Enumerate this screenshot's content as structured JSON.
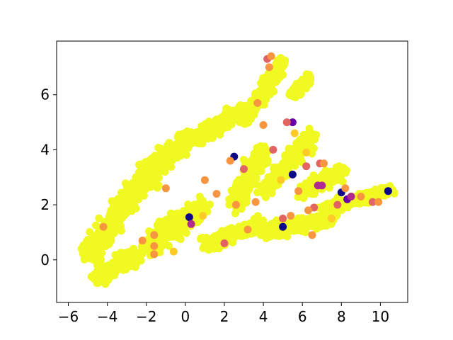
{
  "chart_data": {
    "type": "scatter",
    "title": "",
    "xlabel": "",
    "ylabel": "",
    "xlim": [
      -6.6,
      11.4
    ],
    "ylim": [
      -1.55,
      7.95
    ],
    "xticks": [
      "−6",
      "−4",
      "−2",
      "0",
      "2",
      "4",
      "6",
      "8",
      "10"
    ],
    "xtick_values": [
      -6,
      -4,
      -2,
      0,
      2,
      4,
      6,
      8,
      10
    ],
    "yticks": [
      "0",
      "2",
      "4",
      "6"
    ],
    "ytick_values": [
      0,
      2,
      4,
      6
    ],
    "grid": false,
    "legend": "none",
    "colormap": "plasma",
    "colors": {
      "dominant": "#f0f921",
      "orange": "#f89540",
      "gold": "#fdca26",
      "salmon": "#e16462",
      "magenta": "#b12a90",
      "purple": "#6a00a8",
      "navy": "#0d0887"
    },
    "dense_regions": [
      {
        "from": [
          -5.0,
          0.2
        ],
        "to": [
          -3.5,
          1.5
        ],
        "spread": 0.45
      },
      {
        "from": [
          -4.5,
          -0.6
        ],
        "to": [
          -2.5,
          0.2
        ],
        "spread": 0.35
      },
      {
        "from": [
          -3.5,
          1.8
        ],
        "to": [
          -1.5,
          3.3
        ],
        "spread": 0.45
      },
      {
        "from": [
          -2.0,
          3.2
        ],
        "to": [
          0.5,
          4.5
        ],
        "spread": 0.4
      },
      {
        "from": [
          0.5,
          4.4
        ],
        "to": [
          3.0,
          5.4
        ],
        "spread": 0.35
      },
      {
        "from": [
          -2.0,
          0.5
        ],
        "to": [
          1.0,
          2.0
        ],
        "spread": 0.45
      },
      {
        "from": [
          1.0,
          0.6
        ],
        "to": [
          4.0,
          1.3
        ],
        "spread": 0.3
      },
      {
        "from": [
          4.0,
          1.0
        ],
        "to": [
          7.5,
          1.5
        ],
        "spread": 0.3
      },
      {
        "from": [
          7.0,
          1.8
        ],
        "to": [
          10.6,
          2.55
        ],
        "spread": 0.22
      },
      {
        "from": [
          2.5,
          2.0
        ],
        "to": [
          4.0,
          4.0
        ],
        "spread": 0.4
      },
      {
        "from": [
          4.0,
          2.5
        ],
        "to": [
          6.5,
          4.5
        ],
        "spread": 0.35
      },
      {
        "from": [
          3.0,
          5.0
        ],
        "to": [
          5.0,
          7.2
        ],
        "spread": 0.3
      },
      {
        "from": [
          5.5,
          6.0
        ],
        "to": [
          6.3,
          6.6
        ],
        "spread": 0.2
      },
      {
        "from": [
          6.0,
          2.5
        ],
        "to": [
          8.0,
          3.2
        ],
        "spread": 0.3
      }
    ],
    "highlight_points": [
      {
        "x": 2.5,
        "y": 3.75,
        "color": "navy"
      },
      {
        "x": 0.2,
        "y": 1.55,
        "color": "navy"
      },
      {
        "x": 8.0,
        "y": 2.45,
        "color": "navy"
      },
      {
        "x": 10.4,
        "y": 2.5,
        "color": "navy"
      },
      {
        "x": 8.3,
        "y": 2.2,
        "color": "purple"
      },
      {
        "x": 5.5,
        "y": 3.1,
        "color": "navy"
      },
      {
        "x": 5.0,
        "y": 1.2,
        "color": "navy"
      },
      {
        "x": 5.5,
        "y": 5.0,
        "color": "purple"
      },
      {
        "x": 2.3,
        "y": 3.6,
        "color": "orange"
      },
      {
        "x": 0.3,
        "y": 1.3,
        "color": "magenta"
      },
      {
        "x": 6.8,
        "y": 2.7,
        "color": "magenta"
      },
      {
        "x": 7.0,
        "y": 2.7,
        "color": "magenta"
      },
      {
        "x": 8.5,
        "y": 2.3,
        "color": "magenta"
      },
      {
        "x": 5.2,
        "y": 5.0,
        "color": "salmon"
      },
      {
        "x": 5.0,
        "y": 1.5,
        "color": "salmon"
      },
      {
        "x": 3.0,
        "y": 3.3,
        "color": "salmon"
      },
      {
        "x": 2.0,
        "y": 0.6,
        "color": "salmon"
      },
      {
        "x": 6.9,
        "y": 3.5,
        "color": "salmon"
      },
      {
        "x": 7.8,
        "y": 2.0,
        "color": "salmon"
      },
      {
        "x": 9.6,
        "y": 2.1,
        "color": "salmon"
      },
      {
        "x": 4.5,
        "y": 4.0,
        "color": "salmon"
      },
      {
        "x": 4.2,
        "y": 7.3,
        "color": "salmon"
      },
      {
        "x": 4.4,
        "y": 7.4,
        "color": "orange"
      },
      {
        "x": 6.6,
        "y": 1.9,
        "color": "salmon"
      },
      {
        "x": 6.2,
        "y": 3.4,
        "color": "salmon"
      },
      {
        "x": 2.6,
        "y": 2.0,
        "color": "orange"
      },
      {
        "x": 1.0,
        "y": 2.9,
        "color": "orange"
      },
      {
        "x": -1.0,
        "y": 2.6,
        "color": "orange"
      },
      {
        "x": -2.2,
        "y": 0.7,
        "color": "orange"
      },
      {
        "x": -1.6,
        "y": 0.2,
        "color": "orange"
      },
      {
        "x": -1.6,
        "y": 0.5,
        "color": "orange"
      },
      {
        "x": -1.6,
        "y": 0.9,
        "color": "orange"
      },
      {
        "x": -4.2,
        "y": 1.2,
        "color": "orange"
      },
      {
        "x": 3.6,
        "y": 2.1,
        "color": "orange"
      },
      {
        "x": 3.7,
        "y": 5.7,
        "color": "orange"
      },
      {
        "x": 4.0,
        "y": 4.9,
        "color": "orange"
      },
      {
        "x": 4.3,
        "y": 7.0,
        "color": "orange"
      },
      {
        "x": 5.4,
        "y": 1.6,
        "color": "orange"
      },
      {
        "x": 5.8,
        "y": 2.5,
        "color": "orange"
      },
      {
        "x": 6.3,
        "y": 1.8,
        "color": "orange"
      },
      {
        "x": 7.1,
        "y": 3.5,
        "color": "orange"
      },
      {
        "x": 8.2,
        "y": 2.6,
        "color": "orange"
      },
      {
        "x": 9.0,
        "y": 2.3,
        "color": "orange"
      },
      {
        "x": 9.9,
        "y": 2.1,
        "color": "orange"
      },
      {
        "x": 6.5,
        "y": 0.9,
        "color": "orange"
      },
      {
        "x": 3.2,
        "y": 1.1,
        "color": "orange"
      },
      {
        "x": 1.6,
        "y": 2.4,
        "color": "orange"
      },
      {
        "x": -0.6,
        "y": 0.3,
        "color": "gold"
      },
      {
        "x": 0.9,
        "y": 1.6,
        "color": "gold"
      },
      {
        "x": 4.9,
        "y": 2.9,
        "color": "gold"
      },
      {
        "x": 7.5,
        "y": 1.5,
        "color": "gold"
      },
      {
        "x": 5.6,
        "y": 4.6,
        "color": "gold"
      },
      {
        "x": 6.2,
        "y": 3.9,
        "color": "gold"
      }
    ]
  }
}
